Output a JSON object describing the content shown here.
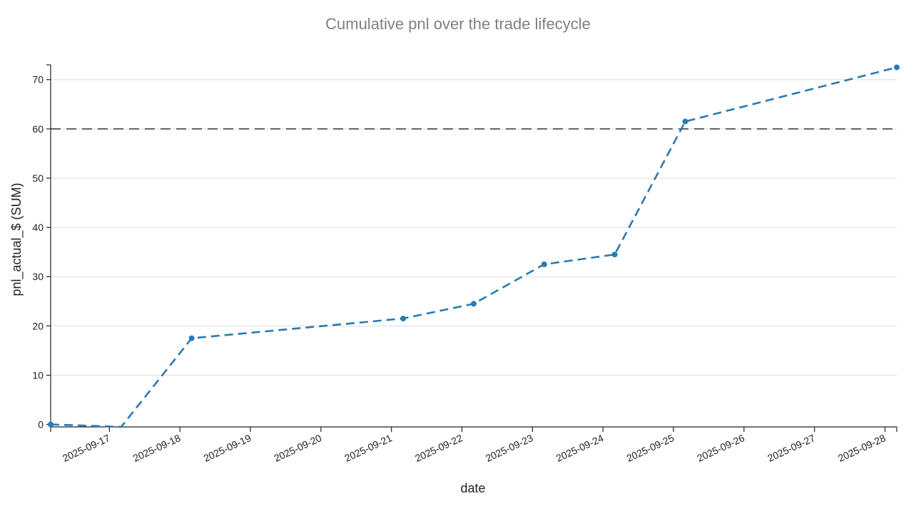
{
  "chart_data": {
    "type": "line",
    "title": "Cumulative pnl over the trade lifecycle",
    "xlabel": "date",
    "ylabel": "pnl_actual_$ (SUM)",
    "x_ticks": [
      "2025-09-17",
      "2025-09-18",
      "2025-09-19",
      "2025-09-20",
      "2025-09-21",
      "2025-09-22",
      "2025-09-23",
      "2025-09-24",
      "2025-09-25",
      "2025-09-26",
      "2025-09-27",
      "2025-09-28"
    ],
    "y_ticks": [
      0,
      10,
      20,
      30,
      40,
      50,
      60,
      70
    ],
    "xlim": [
      "2025-09-16T04:00",
      "2025-09-28T04:00"
    ],
    "ylim": [
      -0.5,
      73
    ],
    "grid": "horizontal",
    "reference_line": {
      "y": 60,
      "style": "dashed",
      "color": "#333333"
    },
    "series": [
      {
        "color": "#2a7ab0",
        "style": "dashed",
        "markers": true,
        "points": [
          {
            "x": "2025-09-16T04:00",
            "y": 0
          },
          {
            "x": "2025-09-17T04:00",
            "y": -0.5
          },
          {
            "x": "2025-09-18T04:00",
            "y": 17.5
          },
          {
            "x": "2025-09-21T04:00",
            "y": 21.5
          },
          {
            "x": "2025-09-22T04:00",
            "y": 24.5
          },
          {
            "x": "2025-09-23T04:00",
            "y": 32.5
          },
          {
            "x": "2025-09-24T04:00",
            "y": 34.5
          },
          {
            "x": "2025-09-25T04:00",
            "y": 61.5
          },
          {
            "x": "2025-09-28T04:00",
            "y": 72.5
          }
        ],
        "marker_points": [
          {
            "x": "2025-09-16T04:00",
            "y": 0
          },
          {
            "x": "2025-09-18T04:00",
            "y": 17.5
          },
          {
            "x": "2025-09-21T04:00",
            "y": 21.5
          },
          {
            "x": "2025-09-22T04:00",
            "y": 24.5
          },
          {
            "x": "2025-09-23T04:00",
            "y": 32.5
          },
          {
            "x": "2025-09-24T04:00",
            "y": 34.5
          },
          {
            "x": "2025-09-25T04:00",
            "y": 61.5
          },
          {
            "x": "2025-09-28T04:00",
            "y": 72.5
          }
        ]
      }
    ]
  }
}
